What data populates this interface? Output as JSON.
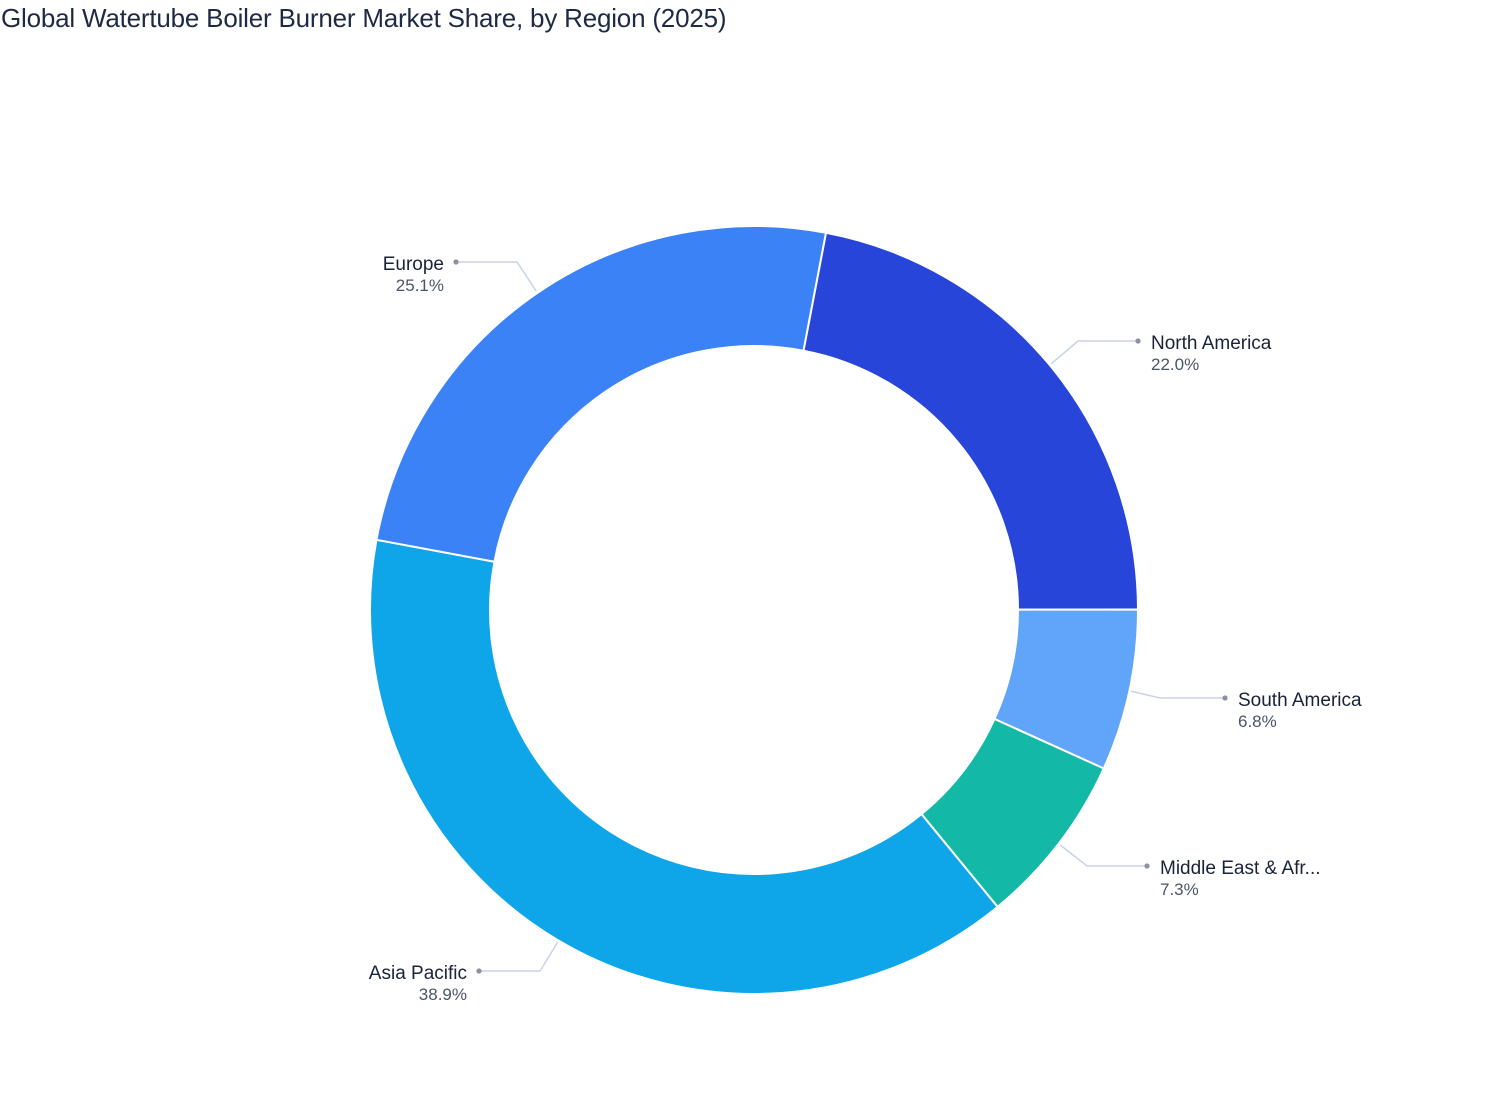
{
  "title": "Global Watertube Boiler Burner Market Share, by Region (2025)",
  "chart_data": {
    "type": "pie",
    "style": "donut",
    "title": "Global Watertube Boiler Burner Market Share, by Region (2025)",
    "center": [
      754,
      610
    ],
    "outer_radius": 384,
    "inner_radius": 264,
    "start_angle_deg": 10.8,
    "direction": "clockwise",
    "slices": [
      {
        "label": "North America",
        "display_label": "North America",
        "value": 22.0,
        "value_label": "22.0%",
        "color": "#2845d9"
      },
      {
        "label": "South America",
        "display_label": "South America",
        "value": 6.8,
        "value_label": "6.8%",
        "color": "#60a5fa"
      },
      {
        "label": "Middle East & Africa",
        "display_label": "Middle East & Afr...",
        "value": 7.3,
        "value_label": "7.3%",
        "color": "#14b8a6"
      },
      {
        "label": "Asia Pacific",
        "display_label": "Asia Pacific",
        "value": 38.9,
        "value_label": "38.9%",
        "color": "#0ea5e9"
      },
      {
        "label": "Europe",
        "display_label": "Europe",
        "value": 25.1,
        "value_label": "25.1%",
        "color": "#3b82f6"
      }
    ],
    "labels_layout": [
      {
        "anchor": "start",
        "dot": [
          1138,
          341
        ],
        "elbow": [
          1078,
          341
        ],
        "text": [
          1151,
          349
        ]
      },
      {
        "anchor": "start",
        "dot": [
          1225,
          698
        ],
        "elbow": [
          1160,
          698
        ],
        "text": [
          1238,
          706
        ]
      },
      {
        "anchor": "start",
        "dot": [
          1147,
          866
        ],
        "elbow": [
          1087,
          866
        ],
        "text": [
          1160,
          874
        ]
      },
      {
        "anchor": "end",
        "dot": [
          479,
          971
        ],
        "elbow": [
          540,
          971
        ],
        "text": [
          467,
          979
        ]
      },
      {
        "anchor": "end",
        "dot": [
          456,
          262
        ],
        "elbow": [
          517,
          262
        ],
        "text": [
          444,
          270
        ]
      }
    ],
    "leader_color": "#c9d3e6",
    "dot_color": "#8a92a3",
    "legend": "none (direct labels)"
  }
}
